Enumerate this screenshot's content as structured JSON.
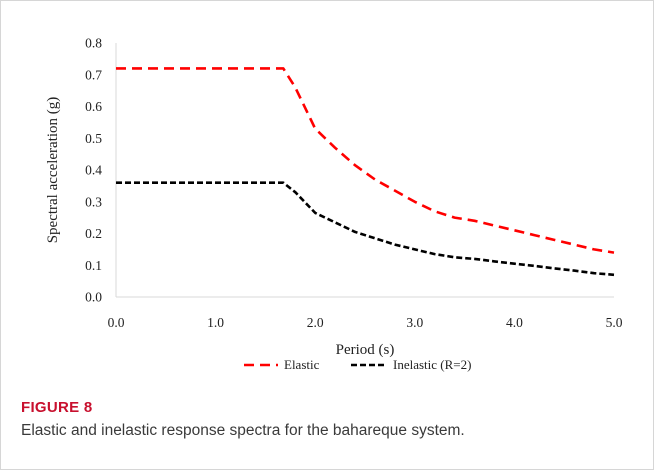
{
  "figure": {
    "label": "FIGURE 8",
    "caption": "Elastic and inelastic response spectra for the bahareque system."
  },
  "chart_data": {
    "type": "line",
    "title": "",
    "xlabel": "Period (s)",
    "ylabel": "Spectral acceleration (g)",
    "xlim": [
      0.0,
      5.0
    ],
    "ylim": [
      0.0,
      0.8
    ],
    "xticks": [
      "0.0",
      "1.0",
      "2.0",
      "3.0",
      "4.0",
      "5.0"
    ],
    "yticks": [
      "0.0",
      "0.1",
      "0.2",
      "0.3",
      "0.4",
      "0.5",
      "0.6",
      "0.7",
      "0.8"
    ],
    "grid": false,
    "legend_position": "bottom",
    "series": [
      {
        "name": "Elastic",
        "color": "#ff0000",
        "style": "dashed",
        "x": [
          0.0,
          1.68,
          1.8,
          2.0,
          2.2,
          2.4,
          2.6,
          2.8,
          3.0,
          3.2,
          3.4,
          3.6,
          3.8,
          4.0,
          4.2,
          4.4,
          4.6,
          4.8,
          5.0
        ],
        "y": [
          0.72,
          0.72,
          0.66,
          0.53,
          0.47,
          0.415,
          0.37,
          0.335,
          0.3,
          0.27,
          0.25,
          0.24,
          0.225,
          0.21,
          0.195,
          0.18,
          0.165,
          0.15,
          0.14
        ]
      },
      {
        "name": "Inelastic (R=2)",
        "color": "#000000",
        "style": "dashed",
        "x": [
          0.0,
          1.68,
          1.8,
          2.0,
          2.2,
          2.4,
          2.6,
          2.8,
          3.0,
          3.2,
          3.4,
          3.6,
          3.8,
          4.0,
          4.2,
          4.4,
          4.6,
          4.8,
          5.0
        ],
        "y": [
          0.36,
          0.36,
          0.33,
          0.265,
          0.235,
          0.205,
          0.185,
          0.165,
          0.15,
          0.135,
          0.125,
          0.12,
          0.112,
          0.105,
          0.098,
          0.09,
          0.083,
          0.075,
          0.07
        ]
      }
    ]
  }
}
